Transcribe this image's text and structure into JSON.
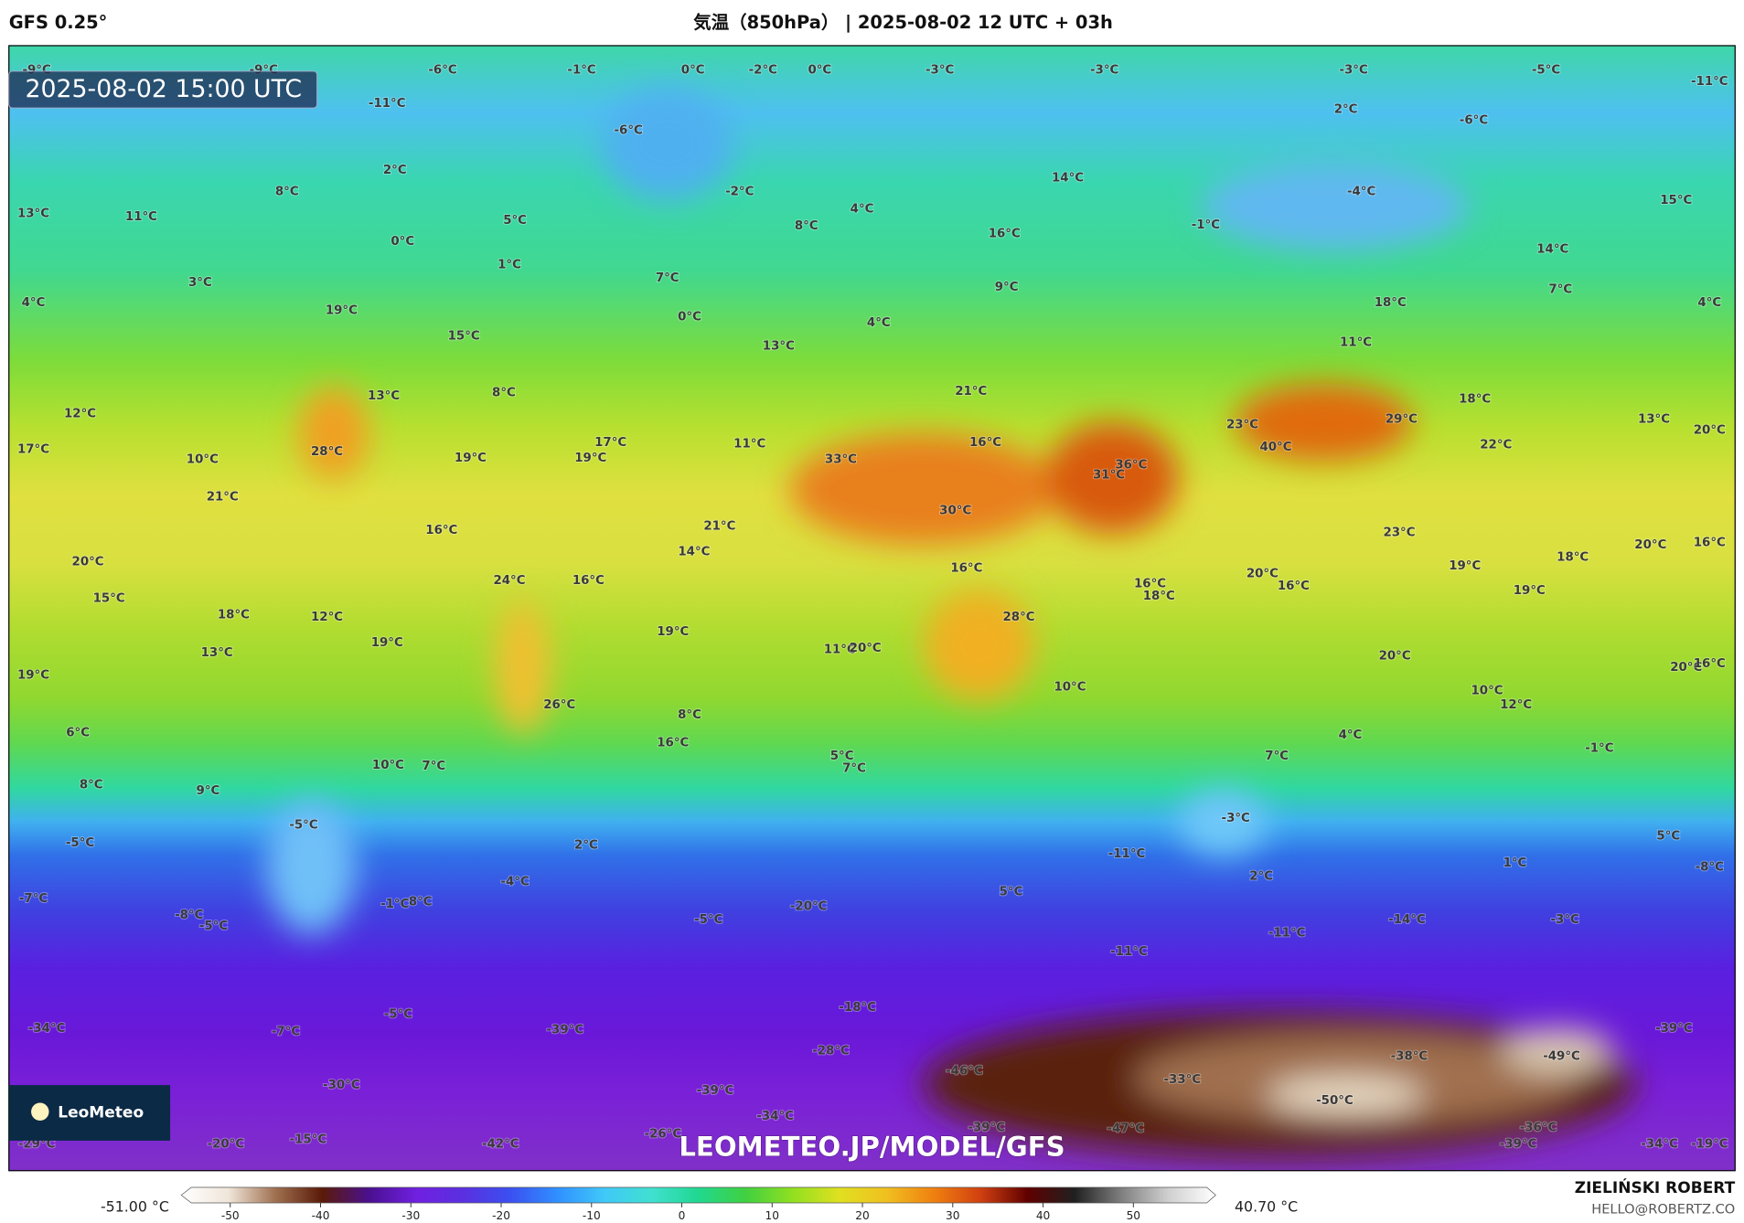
{
  "header": {
    "model": "GFS 0.25°",
    "title": "気温（850hPa） | 2025-08-02 12 UTC + 03h"
  },
  "timestamp": "2025-08-02 15:00 UTC",
  "logo": "LeoMeteo",
  "watermark": "LEOMETEO.JP/MODEL/GFS",
  "author": {
    "name": "ZIELIŃSKI ROBERT",
    "email": "HELLO@ROBERTZ.CO"
  },
  "colorbar": {
    "min_label": "-51.00 °C",
    "max_label": "40.70 °C",
    "ticks": [
      -50,
      -40,
      -30,
      -20,
      -10,
      0,
      10,
      20,
      30,
      40,
      50
    ],
    "colors": [
      "#ffffff",
      "#f0e6da",
      "#a07050",
      "#5a1a08",
      "#4a1090",
      "#7020e0",
      "#5a30e0",
      "#3a50f0",
      "#3090ff",
      "#40c8f8",
      "#40e0d0",
      "#20d890",
      "#40d040",
      "#90e020",
      "#e0e020",
      "#f0c020",
      "#f08010",
      "#d04010",
      "#600000",
      "#202020",
      "#808080",
      "#d0d0d0",
      "#ffffff"
    ]
  },
  "labels": [
    "-9°C",
    "-9°C",
    "-6°C",
    "-1°C",
    "0°C",
    "-2°C",
    "0°C",
    "-3°C",
    "-3°C",
    "-3°C",
    "-5°C",
    "-11°C",
    "-11°C",
    "2°C",
    "-6°C",
    "-6°C",
    "2°C",
    "8°C",
    "-2°C",
    "14°C",
    "-4°C",
    "15°C",
    "13°C",
    "11°C",
    "5°C",
    "4°C",
    "8°C",
    "-1°C",
    "16°C",
    "0°C",
    "1°C",
    "14°C",
    "4°C",
    "3°C",
    "7°C",
    "9°C",
    "7°C",
    "4°C",
    "19°C",
    "18°C",
    "0°C",
    "4°C",
    "15°C",
    "13°C",
    "11°C",
    "13°C",
    "8°C",
    "21°C",
    "18°C",
    "12°C",
    "13°C",
    "20°C",
    "23°C",
    "29°C",
    "17°C",
    "11°C",
    "16°C",
    "40°C",
    "22°C",
    "17°C",
    "28°C",
    "33°C",
    "19°C",
    "19°C",
    "10°C",
    "36°C",
    "31°C",
    "21°C",
    "30°C",
    "16°C",
    "21°C",
    "23°C",
    "14°C",
    "20°C",
    "20°C",
    "16°C",
    "18°C",
    "16°C",
    "20°C",
    "24°C",
    "16°C",
    "16°C",
    "18°C",
    "16°C",
    "19°C",
    "19°C",
    "15°C",
    "18°C",
    "12°C",
    "28°C",
    "19°C",
    "19°C",
    "13°C",
    "11°C",
    "20°C",
    "20°C",
    "19°C",
    "20°C",
    "16°C",
    "10°C",
    "10°C",
    "12°C",
    "26°C",
    "8°C",
    "16°C",
    "4°C",
    "6°C",
    "-1°C",
    "5°C",
    "7°C",
    "7°C",
    "10°C",
    "7°C",
    "8°C",
    "9°C",
    "-5°C",
    "-3°C",
    "5°C",
    "-5°C",
    "2°C",
    "-11°C",
    "1°C",
    "-8°C",
    "2°C",
    "-4°C",
    "5°C",
    "-7°C",
    "-1°C",
    "8°C",
    "-20°C",
    "-8°C",
    "-5°C",
    "-5°C",
    "-14°C",
    "-3°C",
    "-11°C",
    "-11°C",
    "-18°C",
    "-5°C",
    "-34°C",
    "-39°C",
    "-7°C",
    "-39°C",
    "-49°C",
    "-38°C",
    "-28°C",
    "-46°C",
    "-33°C",
    "-30°C",
    "-39°C",
    "-50°C",
    "-34°C",
    "-39°C",
    "-47°C",
    "-36°C",
    "-26°C",
    "-15°C",
    "-20°C",
    "-42°C",
    "-39°C",
    "-34°C",
    "-19°C",
    "-29°C"
  ]
}
